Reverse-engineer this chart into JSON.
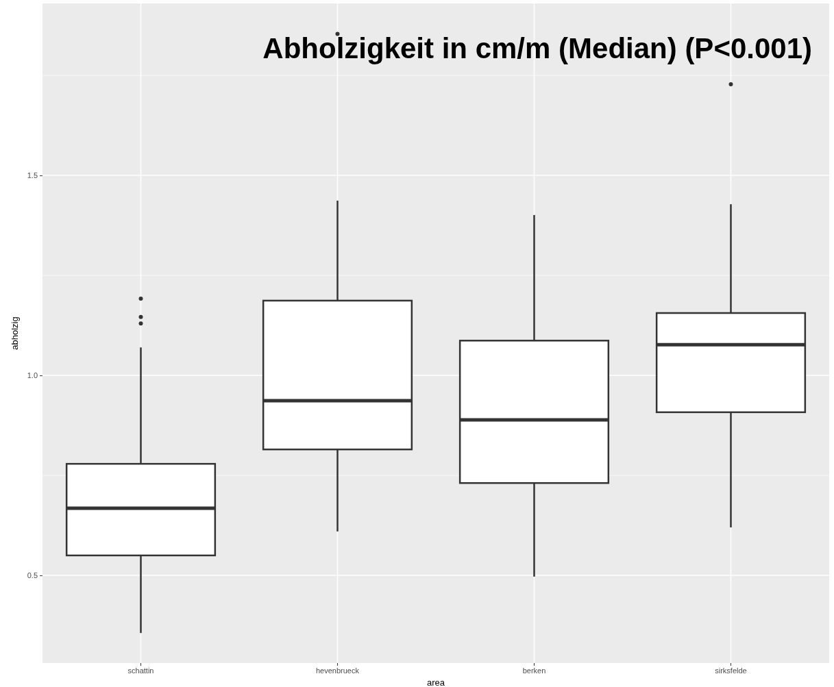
{
  "chart_data": {
    "type": "box",
    "title": "Abholzigkeit in cm/m (Median) (P<0.001)",
    "xlabel": "area",
    "ylabel": "abholzig",
    "categories": [
      "schattin",
      "hevenbrueck",
      "berken",
      "sirksfelde"
    ],
    "boxes": [
      {
        "low": 0.356,
        "q1": 0.55,
        "median": 0.668,
        "q3": 0.779,
        "high": 1.07,
        "outliers": [
          1.192,
          1.146,
          1.13
        ]
      },
      {
        "low": 0.61,
        "q1": 0.815,
        "median": 0.937,
        "q3": 1.187,
        "high": 1.437,
        "outliers": [
          1.854
        ]
      },
      {
        "low": 0.497,
        "q1": 0.731,
        "median": 0.889,
        "q3": 1.087,
        "high": 1.401
      },
      {
        "low": 0.62,
        "q1": 0.908,
        "median": 1.077,
        "q3": 1.156,
        "high": 1.428,
        "outliers": [
          1.728
        ]
      }
    ],
    "ylim": [
      0.281,
      1.93
    ],
    "yticks": [
      {
        "value": 0.5,
        "label": "0.5"
      },
      {
        "value": 0.75,
        "label": null
      },
      {
        "value": 1.0,
        "label": "1.0"
      },
      {
        "value": 1.25,
        "label": null
      },
      {
        "value": 1.5,
        "label": "1.5"
      },
      {
        "value": 1.75,
        "label": null
      }
    ],
    "grid": true
  }
}
